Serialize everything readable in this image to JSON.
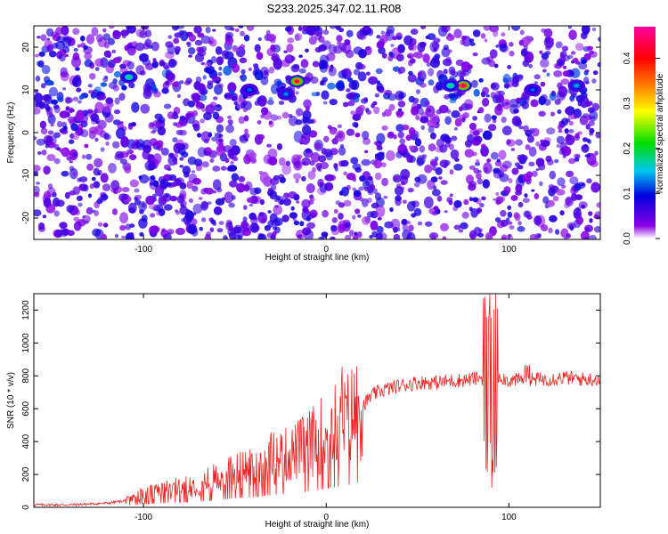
{
  "title": "S233.2025.347.02.11.R08",
  "colors": {
    "snr_line": "#ee2222",
    "scale": [
      "#ffffff",
      "#8a00e6",
      "#0000dd",
      "#00c8f0",
      "#00dd00",
      "#ffff00",
      "#ff8000",
      "#ff0000",
      "#ff00a0"
    ]
  },
  "chart_data": [
    {
      "type": "heatmap",
      "xlabel": "Height of straight line (km)",
      "ylabel": "Frequency (Hz)",
      "xlim": [
        -160,
        150
      ],
      "ylim": [
        -25,
        25
      ],
      "x_ticks": [
        -100,
        0,
        100
      ],
      "y_ticks": [
        20,
        10,
        0,
        -10,
        -20
      ],
      "colorbar": {
        "label": "Normalized spectral amplitude",
        "range": [
          0.0,
          0.47
        ],
        "ticks": [
          "0.0",
          "0.1",
          "0.2",
          "0.3",
          "0.4"
        ]
      },
      "hotspots": [
        {
          "x": -108,
          "y": 13,
          "value": 0.18
        },
        {
          "x": -16,
          "y": 12,
          "value": 0.42
        },
        {
          "x": 75,
          "y": 11,
          "value": 0.45
        },
        {
          "x": 68,
          "y": 11,
          "value": 0.18
        },
        {
          "x": 113,
          "y": 10,
          "value": 0.12
        },
        {
          "x": 137,
          "y": 11,
          "value": 0.14
        },
        {
          "x": -42,
          "y": 10,
          "value": 0.12
        },
        {
          "x": -22,
          "y": 9,
          "value": 0.13
        }
      ]
    },
    {
      "type": "line",
      "xlabel": "Height of straight line (km)",
      "ylabel": "SNR (10 * v/v)",
      "xlim": [
        -160,
        150
      ],
      "ylim": [
        0,
        1300
      ],
      "x_ticks": [
        -100,
        0,
        100
      ],
      "y_ticks": [
        0,
        200,
        400,
        600,
        800,
        1000,
        1200
      ],
      "series": [
        {
          "x": [
            -160,
            -140,
            -120,
            -110,
            -100,
            -90,
            -80,
            -70,
            -60,
            -50,
            -40,
            -30,
            -20,
            -10,
            0,
            5,
            10,
            15,
            20,
            25,
            30,
            40,
            50,
            60,
            70,
            80,
            85,
            88,
            90,
            92,
            95,
            100,
            110,
            120,
            130,
            140,
            150
          ],
          "y": [
            15,
            15,
            25,
            40,
            80,
            100,
            120,
            140,
            180,
            220,
            250,
            300,
            320,
            380,
            460,
            500,
            520,
            580,
            620,
            680,
            710,
            740,
            760,
            760,
            770,
            780,
            790,
            760,
            880,
            780,
            800,
            770,
            780,
            780,
            790,
            780,
            780
          ]
        }
      ]
    }
  ]
}
